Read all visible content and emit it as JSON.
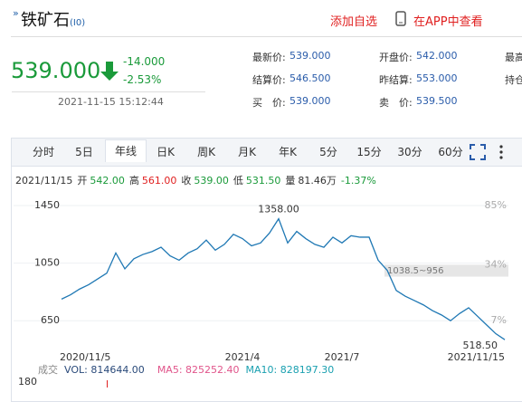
{
  "header": {
    "title": "铁矿石",
    "code": "(I0)",
    "actions": [
      "添加自选",
      "在APP中查看"
    ]
  },
  "quote": {
    "price": "539.000",
    "change": "-14.000",
    "change_pct": "-2.53%",
    "time": "2021-11-15 15:12:44"
  },
  "stats": [
    [
      {
        "label": "最新价:",
        "value": "539.000"
      },
      {
        "label": "开盘价:",
        "value": "542.000"
      },
      {
        "label": "最高"
      }
    ],
    [
      {
        "label": "结算价:",
        "value": "546.500"
      },
      {
        "label": "昨结算:",
        "value": "553.000"
      },
      {
        "label": "持仓"
      }
    ],
    [
      {
        "label": "买　价:",
        "value": "539.000"
      },
      {
        "label": "卖　价:",
        "value": "539.500"
      }
    ]
  ],
  "tabs": [
    "分时",
    "5日",
    "年线",
    "日K",
    "周K",
    "月K",
    "年K",
    "5分",
    "15分",
    "30分",
    "60分"
  ],
  "info_bar": {
    "date": "2021/11/15",
    "items": [
      {
        "label": "开",
        "value": "542.00",
        "color": "#1a9a3a"
      },
      {
        "label": "高",
        "value": "561.00",
        "color": "#e02020"
      },
      {
        "label": "收",
        "value": "539.00",
        "color": "#1a9a3a"
      },
      {
        "label": "低",
        "value": "531.50",
        "color": "#1a9a3a"
      },
      {
        "label": "量",
        "value": "81.46万",
        "color": "#333333"
      }
    ],
    "pct": "-1.37%"
  },
  "chart_data": {
    "type": "line",
    "color": "#1f78b4",
    "categories": [
      "2020/11/5",
      null,
      null,
      null,
      null,
      null,
      null,
      null,
      null,
      null,
      null,
      null,
      null,
      null,
      null,
      null,
      null,
      null,
      null,
      null,
      "2021/4",
      null,
      null,
      null,
      null,
      null,
      null,
      null,
      null,
      null,
      null,
      "2021/7",
      null,
      null,
      null,
      null,
      null,
      null,
      null,
      null,
      null,
      null,
      null,
      null,
      null,
      null,
      null,
      null,
      null,
      "2021/11/15"
    ],
    "values": [
      800,
      830,
      870,
      900,
      940,
      980,
      1120,
      1010,
      1080,
      1110,
      1130,
      1160,
      1100,
      1070,
      1120,
      1150,
      1210,
      1140,
      1180,
      1250,
      1220,
      1170,
      1190,
      1260,
      1358,
      1190,
      1270,
      1220,
      1180,
      1160,
      1230,
      1190,
      1240,
      1230,
      1230,
      1070,
      1000,
      860,
      820,
      790,
      760,
      720,
      690,
      650,
      700,
      740,
      680,
      620,
      560,
      518.5
    ],
    "value_labels": [
      null,
      null,
      null,
      null,
      null,
      null,
      null,
      null,
      null,
      null,
      null,
      null,
      null,
      null,
      null,
      null,
      null,
      null,
      null,
      null,
      null,
      null,
      null,
      null,
      "1358.00",
      null,
      null,
      null,
      null,
      null,
      null,
      null,
      null,
      null,
      null,
      null,
      null,
      null,
      null,
      null,
      null,
      null,
      null,
      null,
      null,
      null,
      null,
      null,
      null,
      "518.50"
    ],
    "ylim": [
      400,
      1500
    ],
    "yticks": [
      650,
      1050,
      1450
    ],
    "range_band": {
      "label": "1038.5~956",
      "range": [
        956,
        1038.5
      ]
    },
    "right_labels": [
      "85%",
      "34%",
      "7%"
    ]
  },
  "volume": {
    "label": "成交",
    "vol": "VOL: 814644.00",
    "ma5": "MA5: 825252.40",
    "ma10": "MA10: 828197.30",
    "tick": "180"
  }
}
